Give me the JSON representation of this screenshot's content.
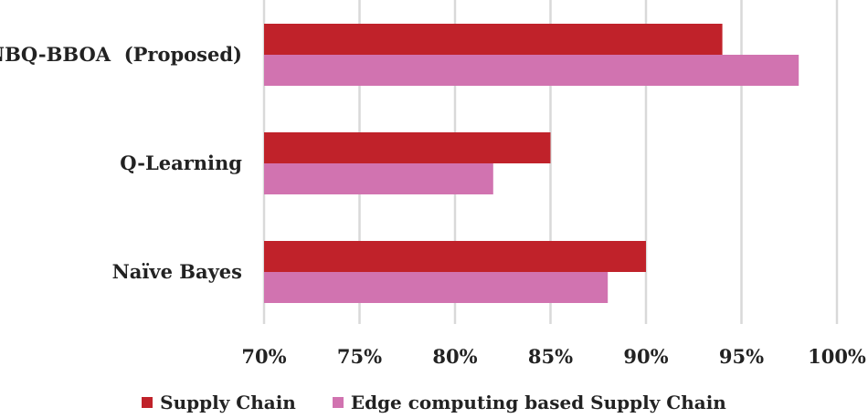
{
  "chart_data": {
    "type": "bar",
    "orientation": "horizontal",
    "categories": [
      "NBQ-BBOA  (Proposed)",
      "Q-Learning",
      "Naïve Bayes"
    ],
    "series": [
      {
        "name": "Supply Chain",
        "color": "#c0222a",
        "values": [
          94,
          85,
          90
        ]
      },
      {
        "name": "Edge computing based Supply Chain",
        "color": "#d173b0",
        "values": [
          98,
          82,
          88
        ]
      }
    ],
    "xlim": [
      70,
      100
    ],
    "ticks": [
      70,
      75,
      80,
      85,
      90,
      95,
      100
    ],
    "tick_labels": [
      "70%",
      "75%",
      "80%",
      "85%",
      "90%",
      "95%",
      "100%"
    ],
    "grid": true,
    "legend": "bottom",
    "title": "",
    "xlabel": "",
    "ylabel": ""
  }
}
